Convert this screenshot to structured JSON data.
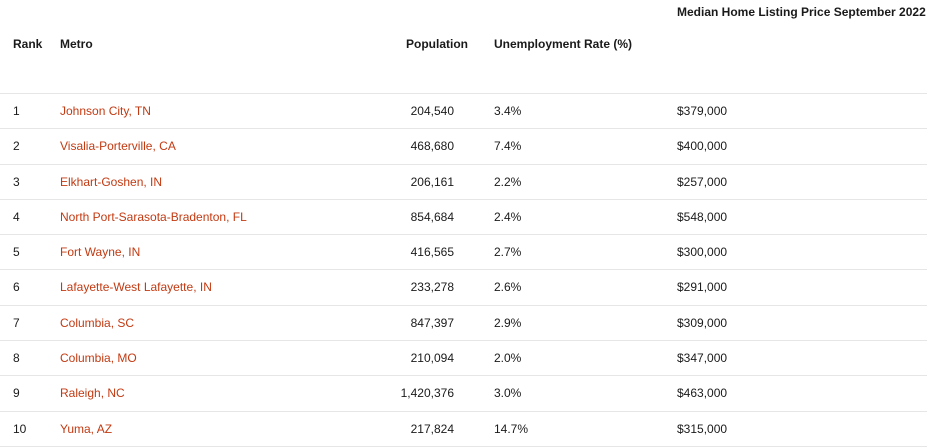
{
  "table": {
    "headers": {
      "rank": "Rank",
      "metro": "Metro",
      "population": "Population",
      "unemployment": "Unemployment Rate (%)",
      "price": "Median Home Listing Price September 2022"
    },
    "rows": [
      {
        "rank": "1",
        "metro": "Johnson City, TN",
        "population": "204,540",
        "unemployment": "3.4%",
        "price": "$379,000"
      },
      {
        "rank": "2",
        "metro": "Visalia-Porterville, CA",
        "population": "468,680",
        "unemployment": "7.4%",
        "price": "$400,000"
      },
      {
        "rank": "3",
        "metro": "Elkhart-Goshen, IN",
        "population": "206,161",
        "unemployment": "2.2%",
        "price": "$257,000"
      },
      {
        "rank": "4",
        "metro": "North Port-Sarasota-Bradenton, FL",
        "population": "854,684",
        "unemployment": "2.4%",
        "price": "$548,000"
      },
      {
        "rank": "5",
        "metro": "Fort Wayne, IN",
        "population": "416,565",
        "unemployment": "2.7%",
        "price": "$300,000"
      },
      {
        "rank": "6",
        "metro": "Lafayette-West Lafayette, IN",
        "population": "233,278",
        "unemployment": "2.6%",
        "price": "$291,000"
      },
      {
        "rank": "7",
        "metro": "Columbia, SC",
        "population": "847,397",
        "unemployment": "2.9%",
        "price": "$309,000"
      },
      {
        "rank": "8",
        "metro": "Columbia, MO",
        "population": "210,094",
        "unemployment": "2.0%",
        "price": "$347,000"
      },
      {
        "rank": "9",
        "metro": "Raleigh, NC",
        "population": "1,420,376",
        "unemployment": "3.0%",
        "price": "$463,000"
      },
      {
        "rank": "10",
        "metro": "Yuma, AZ",
        "population": "217,824",
        "unemployment": "14.7%",
        "price": "$315,000"
      }
    ]
  },
  "colors": {
    "metro_link": "#c23a12",
    "divider": "#e6e6e6"
  }
}
